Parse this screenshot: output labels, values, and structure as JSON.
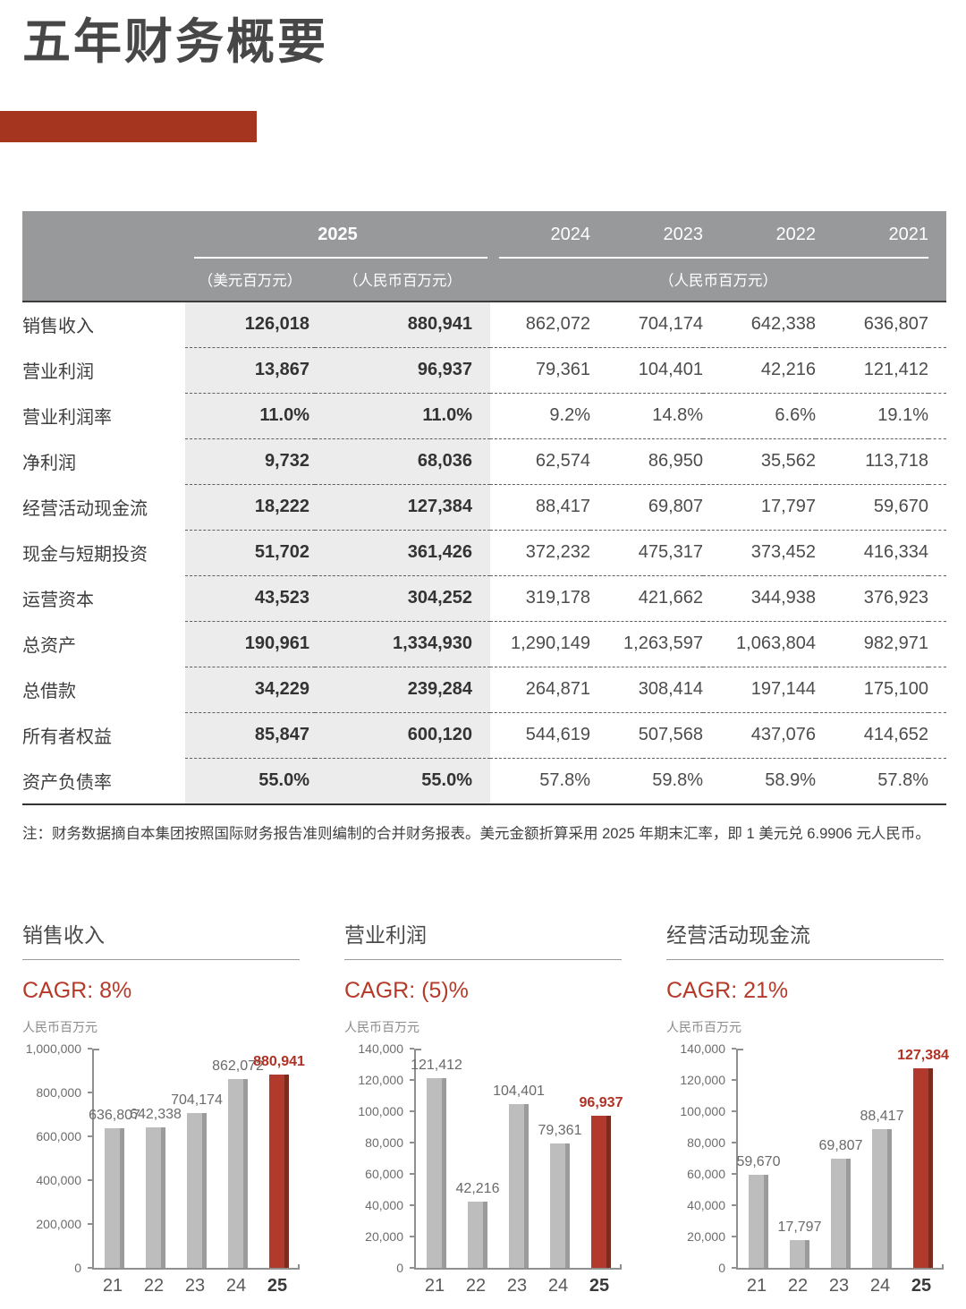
{
  "page": {
    "title": "五年财务概要"
  },
  "table": {
    "header": {
      "year_main": "2025",
      "years": [
        "2024",
        "2023",
        "2022",
        "2021"
      ],
      "unit_usd": "（美元百万元）",
      "unit_rmb": "（人民币百万元）",
      "unit_rmb_right": "（人民币百万元）"
    },
    "rows": [
      {
        "label": "销售收入",
        "usd": "126,018",
        "rmb": "880,941",
        "y2024": "862,072",
        "y2023": "704,174",
        "y2022": "642,338",
        "y2021": "636,807"
      },
      {
        "label": "营业利润",
        "usd": "13,867",
        "rmb": "96,937",
        "y2024": "79,361",
        "y2023": "104,401",
        "y2022": "42,216",
        "y2021": "121,412"
      },
      {
        "label": "营业利润率",
        "usd": "11.0%",
        "rmb": "11.0%",
        "y2024": "9.2%",
        "y2023": "14.8%",
        "y2022": "6.6%",
        "y2021": "19.1%"
      },
      {
        "label": "净利润",
        "usd": "9,732",
        "rmb": "68,036",
        "y2024": "62,574",
        "y2023": "86,950",
        "y2022": "35,562",
        "y2021": "113,718"
      },
      {
        "label": "经营活动现金流",
        "usd": "18,222",
        "rmb": "127,384",
        "y2024": "88,417",
        "y2023": "69,807",
        "y2022": "17,797",
        "y2021": "59,670"
      },
      {
        "label": "现金与短期投资",
        "usd": "51,702",
        "rmb": "361,426",
        "y2024": "372,232",
        "y2023": "475,317",
        "y2022": "373,452",
        "y2021": "416,334"
      },
      {
        "label": "运营资本",
        "usd": "43,523",
        "rmb": "304,252",
        "y2024": "319,178",
        "y2023": "421,662",
        "y2022": "344,938",
        "y2021": "376,923"
      },
      {
        "label": "总资产",
        "usd": "190,961",
        "rmb": "1,334,930",
        "y2024": "1,290,149",
        "y2023": "1,263,597",
        "y2022": "1,063,804",
        "y2021": "982,971"
      },
      {
        "label": "总借款",
        "usd": "34,229",
        "rmb": "239,284",
        "y2024": "264,871",
        "y2023": "308,414",
        "y2022": "197,144",
        "y2021": "175,100"
      },
      {
        "label": "所有者权益",
        "usd": "85,847",
        "rmb": "600,120",
        "y2024": "544,619",
        "y2023": "507,568",
        "y2022": "437,076",
        "y2021": "414,652"
      },
      {
        "label": "资产负债率",
        "usd": "55.0%",
        "rmb": "55.0%",
        "y2024": "57.8%",
        "y2023": "59.8%",
        "y2022": "58.9%",
        "y2021": "57.8%"
      }
    ]
  },
  "note": "注：财务数据摘自本集团按照国际财务报告准则编制的合并财务报表。美元金额折算采用 2025 年期末汇率，即 1 美元兑 6.9906 元人民币。",
  "colors": {
    "accent_red": "#a5351f",
    "bar_red": "#b13a2c",
    "bar_red_edge": "#7c2b1f",
    "bar_gray": "#bdbdbd",
    "bar_gray_edge": "#9b9b9b",
    "header_gray": "#98999b",
    "shade_2025": "#ececec",
    "cagr_red": "#b43a29"
  },
  "chart_data": [
    {
      "type": "bar",
      "key": "sales-revenue",
      "title": "销售收入",
      "cagr": "CAGR: 8%",
      "ylabel": "人民币百万元",
      "categories": [
        "21",
        "22",
        "23",
        "24",
        "25"
      ],
      "values": [
        636807,
        642338,
        704174,
        862072,
        880941
      ],
      "ylim": [
        0,
        1000000
      ],
      "ytick_step": 200000,
      "highlight_index": 4,
      "legend": "none",
      "grid": false
    },
    {
      "type": "bar",
      "key": "operating-profit",
      "title": "营业利润",
      "cagr": "CAGR: (5)%",
      "ylabel": "人民币百万元",
      "categories": [
        "21",
        "22",
        "23",
        "24",
        "25"
      ],
      "values": [
        121412,
        42216,
        104401,
        79361,
        96937
      ],
      "ylim": [
        0,
        140000
      ],
      "ytick_step": 20000,
      "highlight_index": 4,
      "legend": "none",
      "grid": false
    },
    {
      "type": "bar",
      "key": "operating-cash-flow",
      "title": "经营活动现金流",
      "cagr": "CAGR: 21%",
      "ylabel": "人民币百万元",
      "categories": [
        "21",
        "22",
        "23",
        "24",
        "25"
      ],
      "values": [
        59670,
        17797,
        69807,
        88417,
        127384
      ],
      "ylim": [
        0,
        140000
      ],
      "ytick_step": 20000,
      "highlight_index": 4,
      "legend": "none",
      "grid": false
    }
  ]
}
